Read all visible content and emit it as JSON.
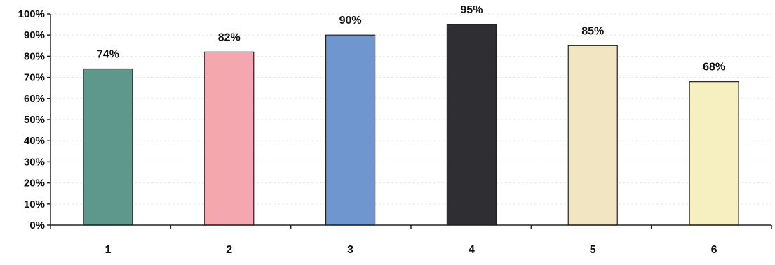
{
  "chart_data": {
    "type": "bar",
    "categories": [
      "1",
      "2",
      "3",
      "4",
      "5",
      "6"
    ],
    "values": [
      74,
      82,
      90,
      95,
      85,
      68
    ],
    "data_labels": [
      "74%",
      "82%",
      "90%",
      "95%",
      "85%",
      "68%"
    ],
    "ylim": [
      0,
      100
    ],
    "yticks": [
      0,
      10,
      20,
      30,
      40,
      50,
      60,
      70,
      80,
      90,
      100
    ],
    "ytick_labels": [
      "0%",
      "10%",
      "20%",
      "30%",
      "40%",
      "50%",
      "60%",
      "70%",
      "80%",
      "90%",
      "100%"
    ],
    "bar_colors": [
      "#5e978b",
      "#f4a7ae",
      "#6f96cf",
      "#2e2e33",
      "#f2e6c2",
      "#f6f0c0"
    ],
    "grid": true,
    "legend": "none"
  }
}
